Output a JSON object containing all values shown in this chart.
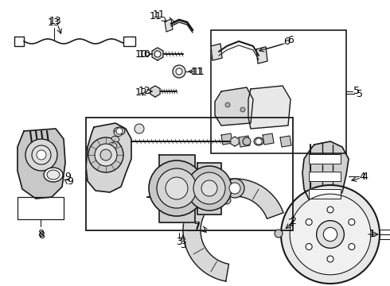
{
  "bg_color": "#ffffff",
  "line_color": "#1a1a1a",
  "figsize": [
    4.9,
    3.6
  ],
  "dpi": 100,
  "image_extent": [
    0,
    490,
    0,
    360
  ]
}
